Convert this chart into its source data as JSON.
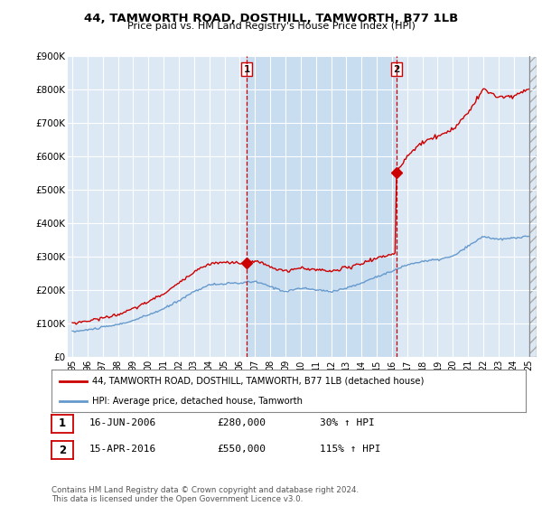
{
  "title": "44, TAMWORTH ROAD, DOSTHILL, TAMWORTH, B77 1LB",
  "subtitle": "Price paid vs. HM Land Registry's House Price Index (HPI)",
  "background_color": "#dce9f5",
  "highlight_color": "#c8ddf0",
  "grid_color": "#ffffff",
  "ylim": [
    0,
    900000
  ],
  "yticks": [
    0,
    100000,
    200000,
    300000,
    400000,
    500000,
    600000,
    700000,
    800000,
    900000
  ],
  "ytick_labels": [
    "£0",
    "£100K",
    "£200K",
    "£300K",
    "£400K",
    "£500K",
    "£600K",
    "£700K",
    "£800K",
    "£900K"
  ],
  "sale1_year": 2006.46,
  "sale1_price": 280000,
  "sale2_year": 2016.29,
  "sale2_price": 550000,
  "red_color": "#cc0000",
  "blue_color": "#6699cc",
  "legend1": "44, TAMWORTH ROAD, DOSTHILL, TAMWORTH, B77 1LB (detached house)",
  "legend2": "HPI: Average price, detached house, Tamworth",
  "note1_label": "1",
  "note1_date": "16-JUN-2006",
  "note1_price": "£280,000",
  "note1_hpi": "30% ↑ HPI",
  "note2_label": "2",
  "note2_date": "15-APR-2016",
  "note2_price": "£550,000",
  "note2_hpi": "115% ↑ HPI",
  "footer": "Contains HM Land Registry data © Crown copyright and database right 2024.\nThis data is licensed under the Open Government Licence v3.0.",
  "xlim_left": 1994.7,
  "xlim_right": 2025.5,
  "xtick_years": [
    1995,
    1996,
    1997,
    1998,
    1999,
    2000,
    2001,
    2002,
    2003,
    2004,
    2005,
    2006,
    2007,
    2008,
    2009,
    2010,
    2011,
    2012,
    2013,
    2014,
    2015,
    2016,
    2017,
    2018,
    2019,
    2020,
    2021,
    2022,
    2023,
    2024,
    2025
  ]
}
